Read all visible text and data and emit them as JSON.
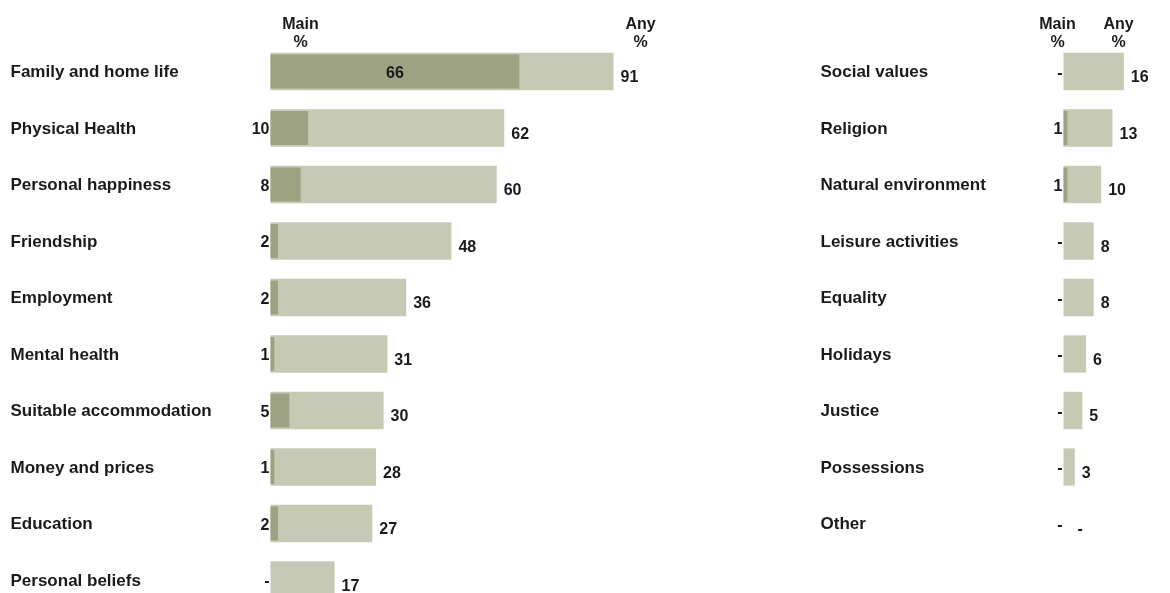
{
  "chart_data": [
    {
      "type": "bar",
      "orientation": "horizontal",
      "annotations": [
        "Main %",
        "Any %"
      ],
      "categories": [
        "Family and home life",
        "Physical Health",
        "Personal happiness",
        "Friendship",
        "Employment",
        "Mental health",
        "Suitable accommodation",
        "Money and prices",
        "Education",
        "Personal beliefs"
      ],
      "series": [
        {
          "color": "#9da283",
          "values": [
            66,
            10,
            8,
            2,
            2,
            1,
            5,
            1,
            2,
            0
          ],
          "value_labels": [
            "66",
            "10",
            "8",
            "2",
            "2",
            "1",
            "5",
            "1",
            "2",
            "-"
          ]
        },
        {
          "color": "#c6c9b4",
          "values": [
            91,
            62,
            60,
            48,
            36,
            31,
            30,
            28,
            27,
            17
          ],
          "value_labels": [
            "91",
            "62",
            "60",
            "48",
            "36",
            "31",
            "30",
            "28",
            "27",
            "17"
          ]
        }
      ]
    },
    {
      "type": "bar",
      "orientation": "horizontal",
      "annotations": [
        "Main %",
        "Any %"
      ],
      "categories": [
        "Social values",
        "Religion",
        "Natural environment",
        "Leisure activities",
        "Equality",
        "Holidays",
        "Justice",
        "Possessions",
        "Other"
      ],
      "series": [
        {
          "color": "#9da283",
          "values": [
            0,
            1,
            1,
            0,
            0,
            0,
            0,
            0,
            0
          ],
          "value_labels": [
            "-",
            "1",
            "1",
            "-",
            "-",
            "-",
            "-",
            "-",
            "-"
          ]
        },
        {
          "color": "#c6c9b4",
          "values": [
            16,
            13,
            10,
            8,
            8,
            6,
            5,
            3,
            0
          ],
          "value_labels": [
            "16",
            "13",
            "10",
            "8",
            "8",
            "6",
            "5",
            "3",
            "-"
          ]
        }
      ]
    }
  ]
}
